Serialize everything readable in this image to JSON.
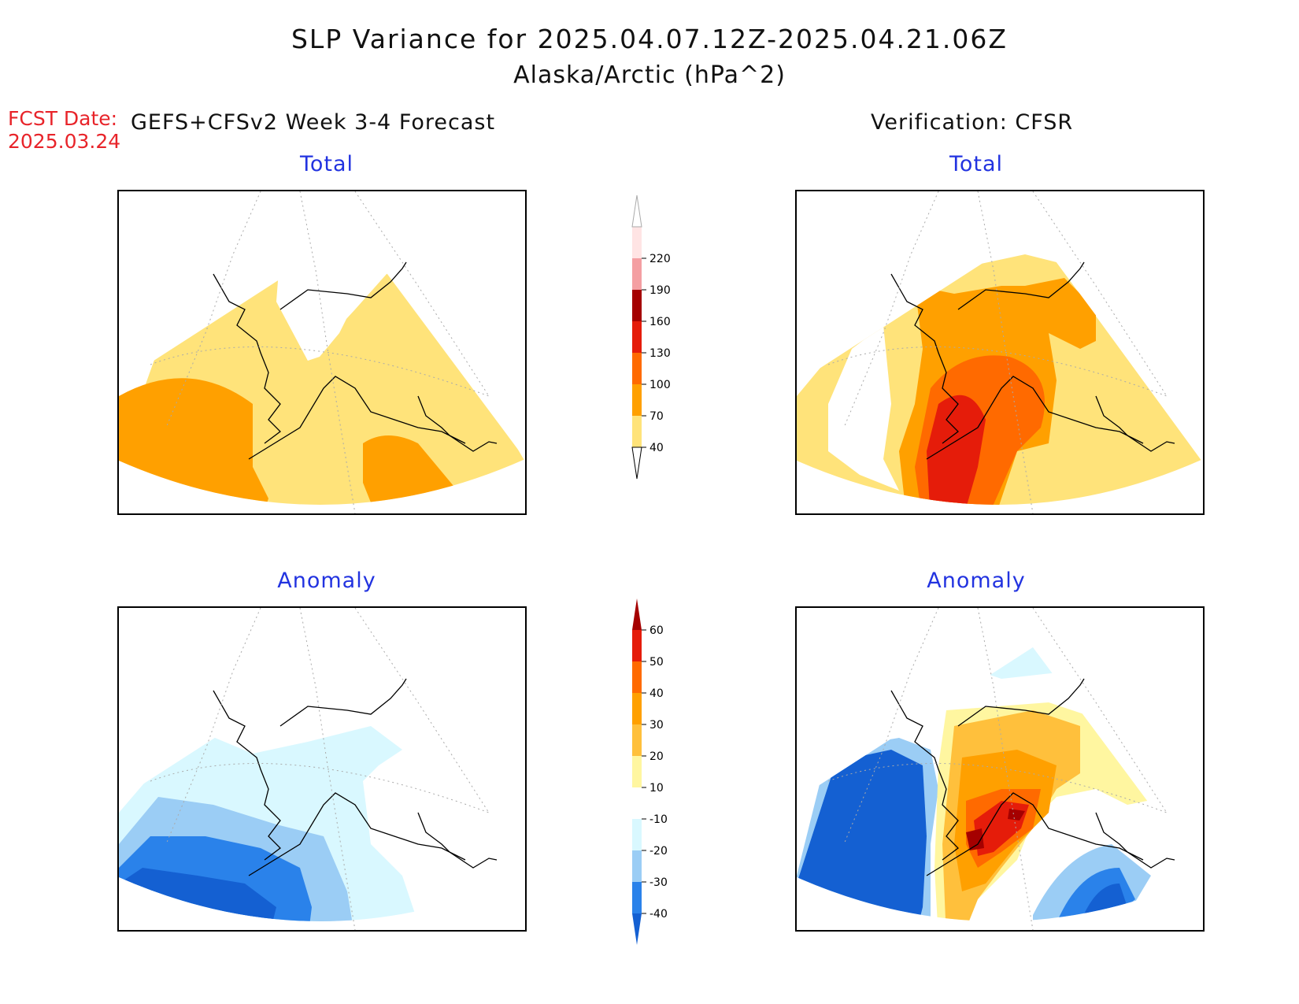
{
  "title": "SLP Variance for 2025.04.07.12Z-2025.04.21.06Z",
  "subtitle": "Alaska/Arctic (hPa^2)",
  "forecast_date": {
    "label": "FCST Date:",
    "value": "2025.03.24"
  },
  "columns": {
    "left": "GEFS+CFSv2 Week 3-4 Forecast",
    "right": "Verification: CFSR"
  },
  "panels": {
    "forecast_total": "Total",
    "verification_total": "Total",
    "forecast_anomaly": "Anomaly",
    "verification_anomaly": "Anomaly"
  },
  "legends": {
    "total": {
      "levels": [
        "40",
        "70",
        "100",
        "130",
        "160",
        "190",
        "220"
      ],
      "colors": [
        "#ffe37a",
        "#ffa000",
        "#ff6a00",
        "#e51c0a",
        "#a50000",
        "#f49fa2",
        "#ffe4e4"
      ]
    },
    "anomaly": {
      "levels": [
        "-40",
        "-30",
        "-20",
        "-10",
        "10",
        "20",
        "30",
        "40",
        "50",
        "60"
      ],
      "colors": [
        "#1460d2",
        "#2a82ea",
        "#9bcdf5",
        "#d9f8ff",
        "#ffffff",
        "#fff6a0",
        "#ffc03c",
        "#ffa000",
        "#ff6a00",
        "#e51c0a",
        "#a50000"
      ]
    }
  }
}
